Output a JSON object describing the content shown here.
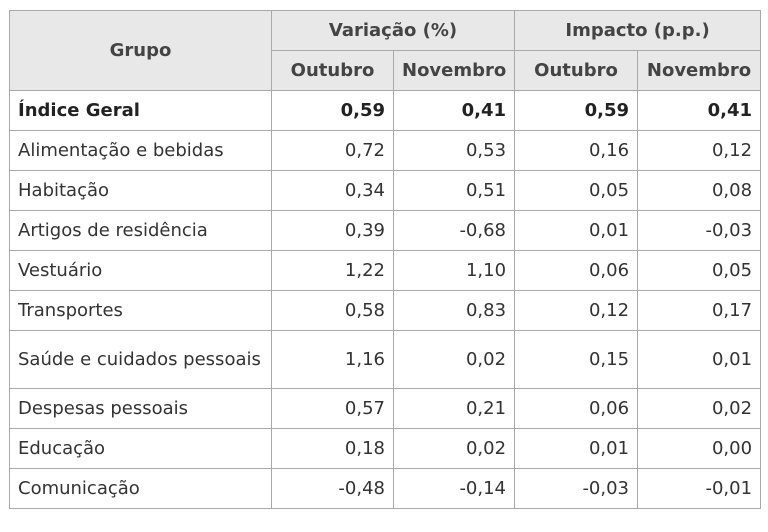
{
  "table": {
    "header": {
      "grupo": "Grupo",
      "variacao": "Variação (%)",
      "impacto": "Impacto (p.p.)",
      "outubro": "Outubro",
      "novembro": "Novembro"
    },
    "rows": [
      {
        "grupo": "Índice Geral",
        "var_out": "0,59",
        "var_nov": "0,41",
        "imp_out": "0,59",
        "imp_nov": "0,41"
      },
      {
        "grupo": "Alimentação e bebidas",
        "var_out": "0,72",
        "var_nov": "0,53",
        "imp_out": "0,16",
        "imp_nov": "0,12"
      },
      {
        "grupo": "Habitação",
        "var_out": "0,34",
        "var_nov": "0,51",
        "imp_out": "0,05",
        "imp_nov": "0,08"
      },
      {
        "grupo": "Artigos de residência",
        "var_out": "0,39",
        "var_nov": "-0,68",
        "imp_out": "0,01",
        "imp_nov": "-0,03"
      },
      {
        "grupo": "Vestuário",
        "var_out": "1,22",
        "var_nov": "1,10",
        "imp_out": "0,06",
        "imp_nov": "0,05"
      },
      {
        "grupo": "Transportes",
        "var_out": "0,58",
        "var_nov": "0,83",
        "imp_out": "0,12",
        "imp_nov": "0,17"
      },
      {
        "grupo": "Saúde e cuidados pessoais",
        "var_out": "1,16",
        "var_nov": "0,02",
        "imp_out": "0,15",
        "imp_nov": "0,01"
      },
      {
        "grupo": "Despesas pessoais",
        "var_out": "0,57",
        "var_nov": "0,21",
        "imp_out": "0,06",
        "imp_nov": "0,02"
      },
      {
        "grupo": "Educação",
        "var_out": "0,18",
        "var_nov": "0,02",
        "imp_out": "0,01",
        "imp_nov": "0,00"
      },
      {
        "grupo": "Comunicação",
        "var_out": "-0,48",
        "var_nov": "-0,14",
        "imp_out": "-0,03",
        "imp_nov": "-0,01"
      }
    ]
  }
}
